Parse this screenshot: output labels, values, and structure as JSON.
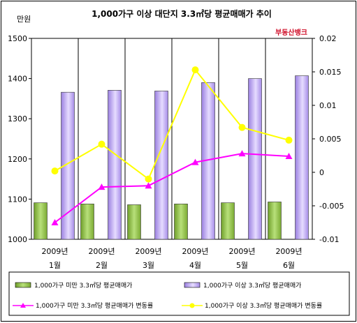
{
  "chart_data": {
    "type": "bar+line",
    "title": "1,000가구 이상 대단지 3.3㎡당 평균매매가 추이",
    "y_left_unit": "만원",
    "y_left": {
      "min": 1000,
      "max": 1500,
      "ticks": [
        "1000",
        "1100",
        "1200",
        "1300",
        "1400",
        "1500"
      ]
    },
    "y_right": {
      "min": -0.01,
      "max": 0.02,
      "ticks": [
        "-0.01",
        "-0.005",
        "0",
        "0.005",
        "0.01",
        "0.015",
        "0.02"
      ]
    },
    "categories": [
      {
        "year": "2009년",
        "month": "1월"
      },
      {
        "year": "2009년",
        "month": "2월"
      },
      {
        "year": "2009년",
        "month": "3월"
      },
      {
        "year": "2009년",
        "month": "4월"
      },
      {
        "year": "2009년",
        "month": "5월"
      },
      {
        "year": "2009년",
        "month": "6월"
      }
    ],
    "bar_series": [
      {
        "name": "1,000가구 미만 3.3㎡당 평균매매가",
        "color": "#8fc640",
        "values": [
          1091,
          1088,
          1086,
          1088,
          1091,
          1093
        ]
      },
      {
        "name": "1,000가구 이상 3.3㎡당 평균매매가",
        "color": "#b99ff0",
        "values": [
          1366,
          1371,
          1369,
          1390,
          1400,
          1407
        ]
      }
    ],
    "line_series": [
      {
        "name": "1,000가구 미만 3.3㎡당 평균매매가 변동률",
        "color": "#ff00ff",
        "marker": "triangle",
        "values": [
          -0.0075,
          -0.0022,
          -0.002,
          0.0015,
          0.0028,
          0.0024
        ]
      },
      {
        "name": "1,000가구 이상 3.3㎡당 평균매매가 변동률",
        "color": "#ffff00",
        "marker": "circle",
        "values": [
          0.0002,
          0.0042,
          -0.001,
          0.0153,
          0.0067,
          0.0048
        ]
      }
    ],
    "legend_position": "bottom",
    "grid": "vertical"
  },
  "logo": {
    "text": "부동산뱅크"
  }
}
